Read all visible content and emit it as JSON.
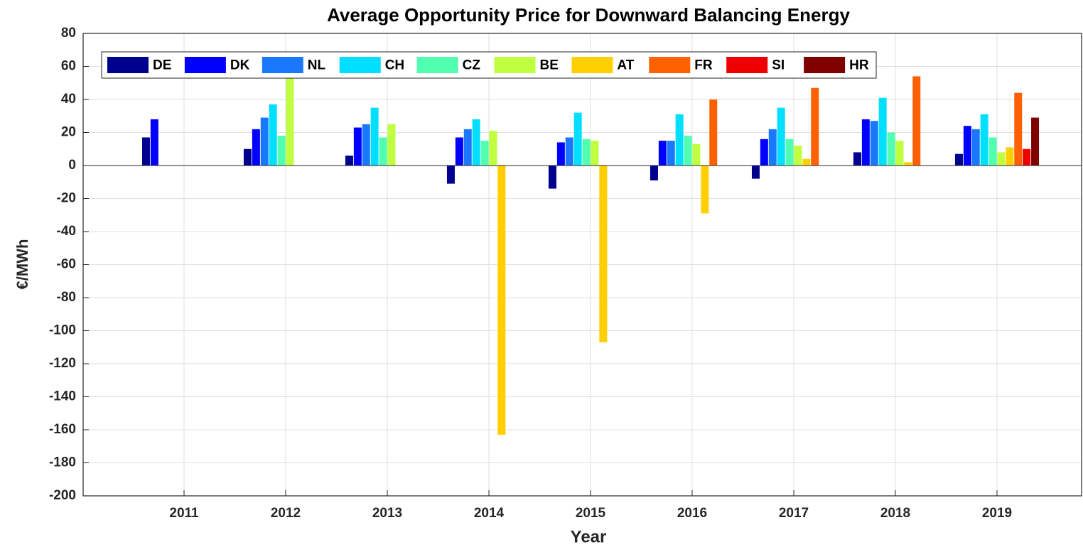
{
  "chart_data": {
    "type": "bar",
    "title": "Average Opportunity Price for Downward Balancing Energy",
    "xlabel": "Year",
    "ylabel": "€/MWh",
    "categories": [
      "2011",
      "2012",
      "2013",
      "2014",
      "2015",
      "2016",
      "2017",
      "2018",
      "2019"
    ],
    "ylim": [
      -200,
      80
    ],
    "yticks": [
      -200,
      -180,
      -160,
      -140,
      -120,
      -100,
      -80,
      -60,
      -40,
      -20,
      0,
      20,
      40,
      60,
      80
    ],
    "grid": true,
    "legend": "top-left",
    "series": [
      {
        "name": "DE",
        "color": "#00008f",
        "values": [
          17,
          10,
          6,
          -11,
          -14,
          -9,
          -8,
          8,
          7
        ]
      },
      {
        "name": "DK",
        "color": "#0000ff",
        "values": [
          28,
          22,
          23,
          17,
          14,
          15,
          16,
          28,
          24
        ]
      },
      {
        "name": "NL",
        "color": "#1a78ff",
        "values": [
          null,
          29,
          25,
          22,
          17,
          15,
          22,
          27,
          22
        ]
      },
      {
        "name": "CH",
        "color": "#00dfff",
        "values": [
          null,
          37,
          35,
          28,
          32,
          31,
          35,
          41,
          31
        ]
      },
      {
        "name": "CZ",
        "color": "#50ffb0",
        "values": [
          null,
          18,
          17,
          15,
          16,
          18,
          16,
          20,
          17
        ]
      },
      {
        "name": "BE",
        "color": "#bfff40",
        "values": [
          null,
          57,
          25,
          21,
          15,
          13,
          12,
          15,
          8
        ]
      },
      {
        "name": "AT",
        "color": "#ffcf00",
        "values": [
          null,
          null,
          null,
          -163,
          -107,
          -29,
          4,
          2,
          11
        ]
      },
      {
        "name": "FR",
        "color": "#ff6000",
        "values": [
          null,
          null,
          null,
          null,
          null,
          40,
          47,
          54,
          44
        ]
      },
      {
        "name": "SI",
        "color": "#ef0000",
        "values": [
          null,
          null,
          null,
          null,
          null,
          null,
          null,
          null,
          10
        ]
      },
      {
        "name": "HR",
        "color": "#800000",
        "values": [
          null,
          null,
          null,
          null,
          null,
          null,
          null,
          null,
          29
        ]
      }
    ]
  }
}
